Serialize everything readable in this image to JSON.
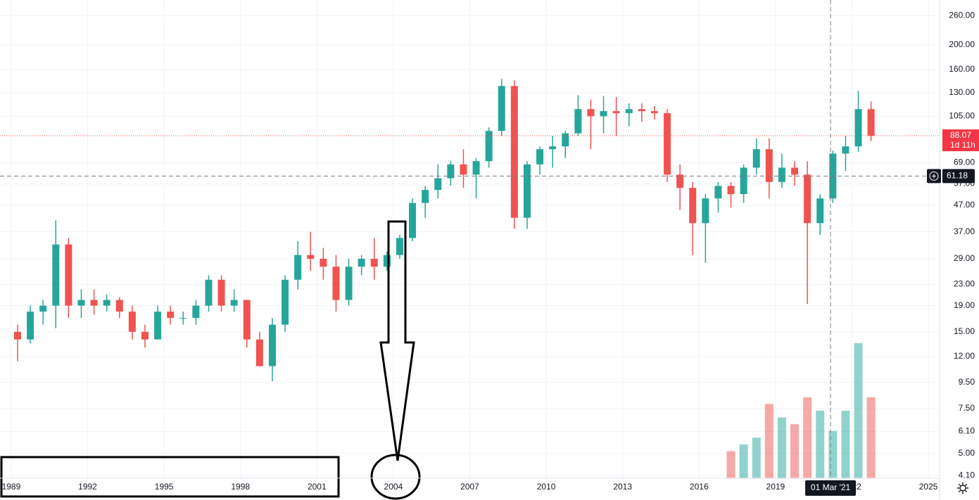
{
  "chart_data": {
    "type": "candlestick",
    "log_scale": true,
    "grid": true,
    "up_color": "#26a69a",
    "down_color": "#ef5350",
    "x": [
      1989.0,
      1989.5,
      1990.0,
      1990.5,
      1991.0,
      1991.5,
      1992.0,
      1992.5,
      1993.0,
      1993.5,
      1994.0,
      1994.5,
      1995.0,
      1995.5,
      1996.0,
      1996.5,
      1997.0,
      1997.5,
      1998.0,
      1998.5,
      1999.0,
      1999.5,
      2000.0,
      2000.5,
      2001.0,
      2001.5,
      2002.0,
      2002.5,
      2003.0,
      2003.5,
      2004.0,
      2004.5,
      2005.0,
      2005.5,
      2006.0,
      2006.5,
      2007.0,
      2007.5,
      2008.0,
      2008.5,
      2009.0,
      2009.5,
      2010.0,
      2010.5,
      2011.0,
      2011.5,
      2012.0,
      2012.5,
      2013.0,
      2013.5,
      2014.0,
      2014.5,
      2015.0,
      2015.5,
      2016.0,
      2016.5,
      2017.0,
      2017.5,
      2018.0,
      2018.5,
      2019.0,
      2019.5,
      2020.0,
      2020.5,
      2021.0,
      2021.5,
      2022.0,
      2022.5
    ],
    "open": [
      15,
      14,
      18,
      19,
      33,
      19,
      20,
      19,
      20,
      18,
      15,
      14,
      18,
      17,
      17,
      19,
      24,
      19,
      20,
      14,
      11,
      16,
      24,
      30,
      29,
      27,
      20,
      27,
      29,
      27,
      30,
      35,
      48,
      54,
      60,
      68,
      62,
      70,
      92,
      138,
      42,
      68,
      78,
      80,
      90,
      112,
      105,
      110,
      108,
      112,
      110,
      108,
      62,
      55,
      40,
      50,
      56,
      52,
      66,
      78,
      58,
      66,
      62,
      40,
      50,
      75,
      80,
      112
    ],
    "high": [
      16,
      19,
      20,
      41,
      35,
      22,
      22,
      21,
      20.5,
      19,
      16,
      19,
      19,
      18,
      20,
      25,
      25,
      22,
      20,
      15,
      17,
      25,
      34,
      37,
      32,
      30,
      29,
      30,
      35,
      31,
      36,
      50,
      56,
      68,
      70,
      78,
      72,
      95,
      147,
      145,
      70,
      80,
      88,
      92,
      127,
      122,
      126,
      125,
      118,
      118,
      115,
      112,
      68,
      58,
      52,
      58,
      58,
      68,
      86,
      86,
      75,
      70,
      70,
      52,
      77,
      88,
      132,
      120
    ],
    "low": [
      11.5,
      13.5,
      16,
      15.5,
      17,
      17,
      17.5,
      18,
      17,
      14,
      13,
      14,
      16,
      16,
      16,
      18,
      18,
      18,
      13,
      11,
      9.6,
      15,
      22,
      26,
      24,
      18,
      19,
      25,
      24,
      26,
      29,
      34,
      42,
      50,
      56,
      55,
      50,
      66,
      88,
      38,
      38,
      62,
      66,
      72,
      88,
      78,
      90,
      88,
      96,
      100,
      102,
      58,
      45,
      30,
      28,
      44,
      46,
      48,
      62,
      50,
      55,
      56,
      19.3,
      36,
      48,
      64,
      76,
      84
    ],
    "close": [
      14,
      18,
      19,
      33,
      19,
      20,
      19,
      20,
      18,
      15,
      14,
      18,
      17,
      17,
      19,
      24,
      19,
      20,
      14,
      11,
      16,
      24,
      30,
      29,
      27,
      20,
      27,
      29,
      27,
      30,
      35,
      48,
      54,
      60,
      68,
      62,
      70,
      92,
      138,
      42,
      68,
      78,
      80,
      90,
      112,
      105,
      110,
      108,
      112,
      110,
      108,
      62,
      55,
      40,
      50,
      56,
      52,
      66,
      78,
      58,
      66,
      62,
      40,
      50,
      75,
      80,
      112,
      88.07
    ],
    "volume": [
      null,
      null,
      null,
      null,
      null,
      null,
      null,
      null,
      null,
      null,
      null,
      null,
      null,
      null,
      null,
      null,
      null,
      null,
      null,
      null,
      null,
      null,
      null,
      null,
      null,
      null,
      null,
      null,
      null,
      null,
      null,
      null,
      null,
      null,
      null,
      null,
      null,
      null,
      null,
      null,
      null,
      null,
      null,
      null,
      null,
      null,
      null,
      null,
      null,
      null,
      null,
      null,
      null,
      null,
      null,
      null,
      20,
      25,
      30,
      55,
      45,
      40,
      60,
      50,
      35,
      50,
      100,
      60
    ],
    "xlim": [
      1988.56,
      2025.44
    ],
    "ylim": [
      4,
      300
    ],
    "xticks": [
      1989,
      1992,
      1995,
      1998,
      2001,
      2004,
      2007,
      2010,
      2013,
      2016,
      2019,
      2022,
      2025
    ],
    "yticks": [
      {
        "value": 260,
        "label": "260.00"
      },
      {
        "value": 200,
        "label": "200.00"
      },
      {
        "value": 160,
        "label": "160.00"
      },
      {
        "value": 130,
        "label": "130.00"
      },
      {
        "value": 105,
        "label": "105.00"
      },
      {
        "value": 69,
        "label": "69.00"
      },
      {
        "value": 57,
        "label": "57.00"
      },
      {
        "value": 47,
        "label": "47.00"
      },
      {
        "value": 37,
        "label": "37.00"
      },
      {
        "value": 29,
        "label": "29.00"
      },
      {
        "value": 23,
        "label": "23.00"
      },
      {
        "value": 19,
        "label": "19.00"
      },
      {
        "value": 15,
        "label": "15.00"
      },
      {
        "value": 12,
        "label": "12.00"
      },
      {
        "value": 9.5,
        "label": "9.50"
      },
      {
        "value": 7.5,
        "label": "7.50"
      },
      {
        "value": 6.1,
        "label": "6.10"
      },
      {
        "value": 5,
        "label": "5.00"
      },
      {
        "value": 4.1,
        "label": "4.10"
      }
    ],
    "last_price": 88.07,
    "countdown": "1d 11h",
    "crosshair": {
      "price": 61.18,
      "x": 2021.16,
      "date_label": "01 Mar '21"
    }
  }
}
